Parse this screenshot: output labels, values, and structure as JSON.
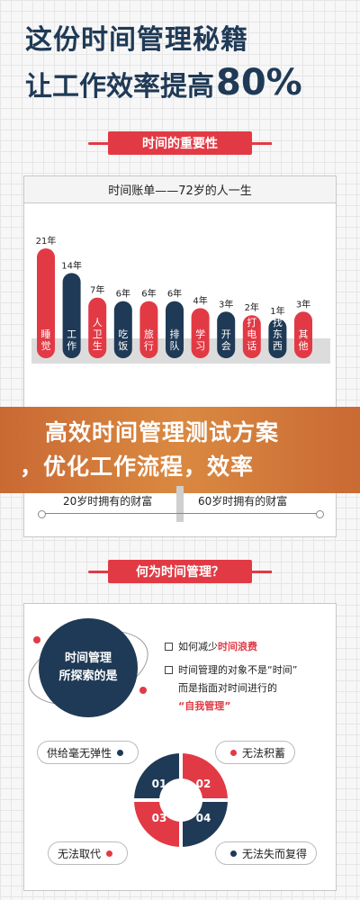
{
  "hero": {
    "line1": "这份时间管理秘籍",
    "line2_text": "让工作效率提高",
    "line2_pct": "80%"
  },
  "section1": {
    "ribbon": "时间的重要性",
    "card_title": "时间账单——72岁的人一生",
    "chart_data": {
      "type": "bar",
      "title": "时间账单——72岁的人一生",
      "categories": [
        "睡觉",
        "工作",
        "人卫生",
        "吃饭",
        "旅行",
        "排队",
        "学习",
        "开会",
        "打电话",
        "找东西",
        "其他"
      ],
      "value_labels": [
        "21年",
        "14年",
        "7年",
        "6年",
        "6年",
        "6年",
        "4年",
        "3年",
        "2年",
        "1年",
        "3年"
      ],
      "values": [
        21,
        14,
        7,
        6,
        6,
        6,
        4,
        3,
        2,
        1,
        3
      ],
      "unit": "年",
      "colors": [
        "#e23a45",
        "#1f3a56",
        "#e23a45",
        "#1f3a56",
        "#e23a45",
        "#1f3a56",
        "#e23a45",
        "#1f3a56",
        "#e23a45",
        "#1f3a56",
        "#e23a45"
      ]
    },
    "wealth_left": "20岁时拥有的财富",
    "wealth_right": "60岁时拥有的财富"
  },
  "banner": {
    "line1": "高效时间管理测试方案",
    "line2": "，优化工作流程，效率"
  },
  "section2": {
    "ribbon": "何为时间管理？",
    "circle_line1": "时间管理",
    "circle_line2": "所探索的是",
    "q1_pre": "如何减少",
    "q1_hl": "时间浪费",
    "q2_line1": "时间管理的对象不是“时间”",
    "q2_line2": "而是指面对时间进行的",
    "q2_line3": "“自我管理”",
    "quad_labels": [
      "01",
      "02",
      "03",
      "04"
    ],
    "pills": [
      "供给毫无弹性",
      "无法积蓄",
      "无法取代",
      "无法失而复得"
    ]
  },
  "colors": {
    "navy": "#1f3a56",
    "red": "#e23a45",
    "banner": "#d17a33"
  }
}
